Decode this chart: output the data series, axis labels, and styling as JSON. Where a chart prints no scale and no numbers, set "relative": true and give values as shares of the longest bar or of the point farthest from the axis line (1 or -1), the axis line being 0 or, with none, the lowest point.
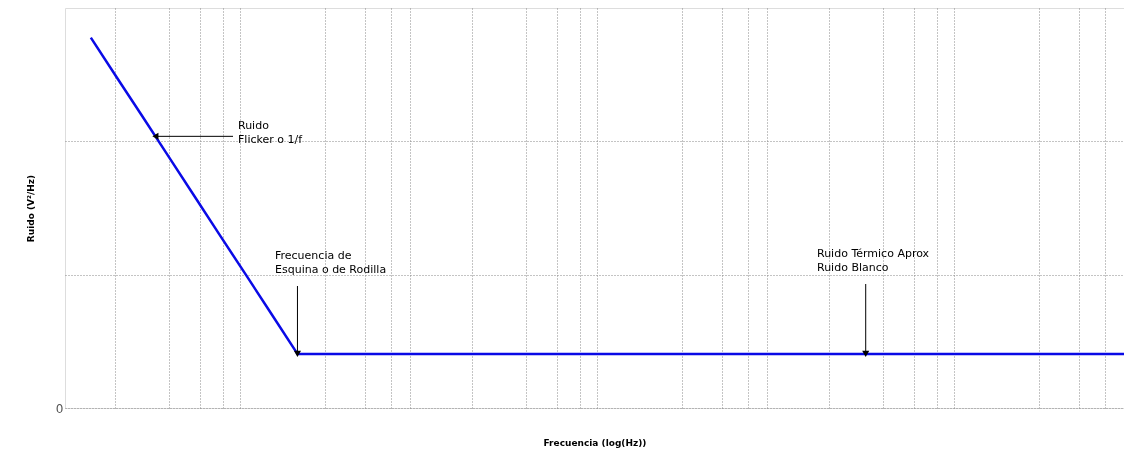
{
  "chart_data": {
    "type": "line",
    "relative": true,
    "xlabel": "Frecuencia (log(Hz))",
    "ylabel": "Ruido (V²/Hz)",
    "color": "#0a0ae6",
    "grid": true,
    "categories": [
      null,
      null,
      null,
      null,
      null,
      null,
      null,
      null,
      null,
      null,
      null,
      null,
      null,
      null,
      null,
      null,
      null,
      null,
      null,
      null,
      null,
      null,
      null,
      null,
      null,
      null,
      null,
      null,
      null,
      null,
      null,
      null,
      null,
      null,
      null,
      null,
      null,
      null,
      null,
      null,
      null
    ],
    "values": [
      1,
      0.893,
      0.787,
      0.68,
      0.573,
      0.466,
      0.36,
      0.253,
      0.146,
      0.146,
      0.146,
      0.146,
      0.146,
      0.146,
      0.146,
      0.146,
      0.146,
      0.146,
      0.146,
      0.146,
      0.146,
      0.146,
      0.146,
      0.146,
      0.146,
      0.146,
      0.146,
      0.146,
      0.146,
      0.146,
      0.146,
      0.146,
      0.146,
      0.146,
      0.146,
      0.146,
      0.146,
      0.146,
      0.146,
      0.146,
      0.146
    ],
    "annotations": [
      "Ruido\nFlicker o 1/f",
      "Frecuencia de\nEsquina o de Rodilla",
      "Ruido Térmico Aprox\nRuido Blanco",
      "0"
    ]
  }
}
